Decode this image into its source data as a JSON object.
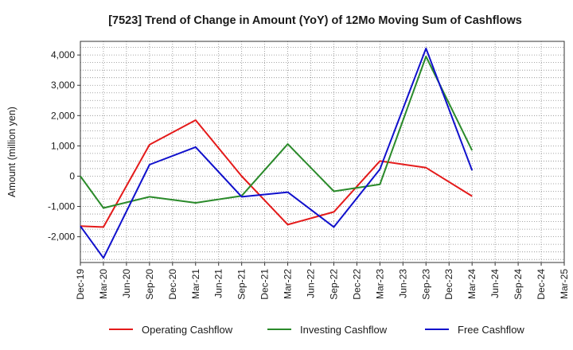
{
  "chart_data": {
    "type": "line",
    "title": "[7523]  Trend of Change in Amount (YoY) of 12Mo Moving Sum of Cashflows",
    "xlabel": "",
    "ylabel": "Amount (million yen)",
    "ylim": [
      -2850,
      4450
    ],
    "yticks": [
      4000,
      3000,
      2000,
      1000,
      0,
      -1000,
      -2000
    ],
    "ytick_labels": [
      "4,000",
      "3,000",
      "2,000",
      "1,000",
      "0",
      "-1,000",
      "-2,000"
    ],
    "grid": true,
    "legend_position": "bottom",
    "categories": [
      "Dec-19",
      "Mar-20",
      "Jun-20",
      "Sep-20",
      "Dec-20",
      "Mar-21",
      "Jun-21",
      "Sep-21",
      "Dec-21",
      "Mar-22",
      "Jun-22",
      "Sep-22",
      "Dec-22",
      "Mar-23",
      "Jun-23",
      "Sep-23",
      "Dec-23",
      "Mar-24",
      "Jun-24",
      "Sep-24",
      "Dec-24",
      "Mar-25"
    ],
    "series": [
      {
        "name": "Operating Cashflow",
        "color": "#e41a1a",
        "values": [
          -1650,
          -1680,
          null,
          1040,
          null,
          1850,
          null,
          0,
          null,
          -1600,
          null,
          -1180,
          null,
          500,
          null,
          280,
          null,
          -660,
          null,
          null,
          null,
          null
        ]
      },
      {
        "name": "Investing Cashflow",
        "color": "#2a8a2a",
        "values": [
          0,
          -1050,
          null,
          -680,
          null,
          -880,
          null,
          -650,
          null,
          1060,
          null,
          -500,
          null,
          -270,
          null,
          3950,
          null,
          850,
          null,
          null,
          null,
          null
        ]
      },
      {
        "name": "Free Cashflow",
        "color": "#1010cc",
        "values": [
          -1650,
          -2700,
          null,
          380,
          null,
          960,
          null,
          -680,
          null,
          -530,
          null,
          -1680,
          null,
          230,
          null,
          4220,
          null,
          190,
          null,
          null,
          null,
          null
        ]
      }
    ]
  }
}
